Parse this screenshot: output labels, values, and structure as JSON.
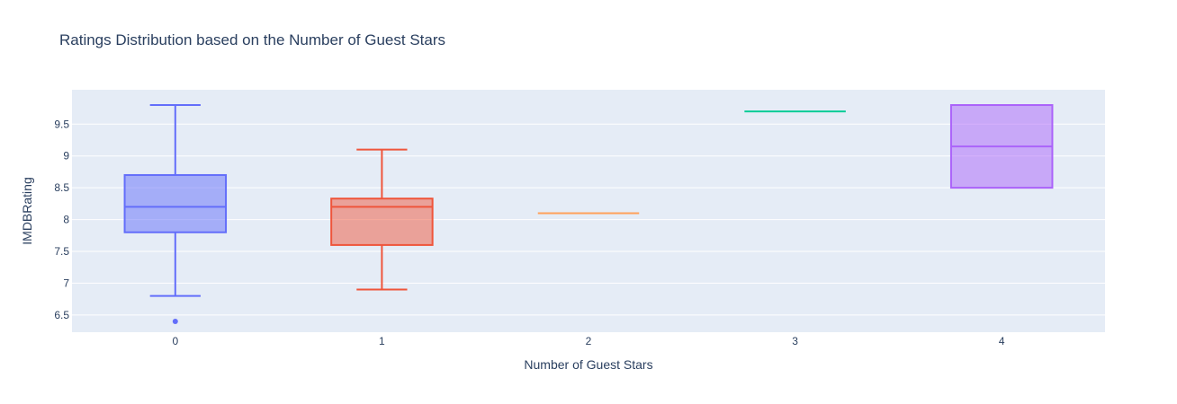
{
  "chart_data": {
    "type": "box",
    "title": "Ratings Distribution based on the Number of Guest Stars",
    "xlabel": "Number of Guest Stars",
    "ylabel": "IMDBRating",
    "ylim": [
      6.23,
      10.04
    ],
    "yticks": [
      "6.5",
      "7",
      "7.5",
      "8",
      "8.5",
      "9",
      "9.5"
    ],
    "categories": [
      "0",
      "1",
      "2",
      "3",
      "4"
    ],
    "grid": true,
    "legend": "none",
    "colors": {
      "plot_bg": "#e5ecf6",
      "gridline": "#ffffff",
      "text": "#2a3f5f"
    },
    "boxes": [
      {
        "category": "0",
        "color": "#636efa",
        "min": 6.8,
        "q1": 7.8,
        "median": 8.2,
        "q3": 8.7,
        "max": 9.8,
        "outliers": [
          6.4
        ]
      },
      {
        "category": "1",
        "color": "#ef553b",
        "min": 6.9,
        "q1": 7.6,
        "median": 8.2,
        "q3": 8.33,
        "max": 9.1,
        "outliers": []
      },
      {
        "category": "2",
        "color": "#ffa15a",
        "min": 8.1,
        "q1": 8.1,
        "median": 8.1,
        "q3": 8.1,
        "max": 8.1,
        "outliers": []
      },
      {
        "category": "3",
        "color": "#00cc96",
        "min": 9.7,
        "q1": 9.7,
        "median": 9.7,
        "q3": 9.7,
        "max": 9.7,
        "outliers": []
      },
      {
        "category": "4",
        "color": "#ab63fa",
        "min": 8.5,
        "q1": 8.5,
        "median": 9.15,
        "q3": 9.8,
        "max": 9.8,
        "outliers": []
      }
    ]
  }
}
